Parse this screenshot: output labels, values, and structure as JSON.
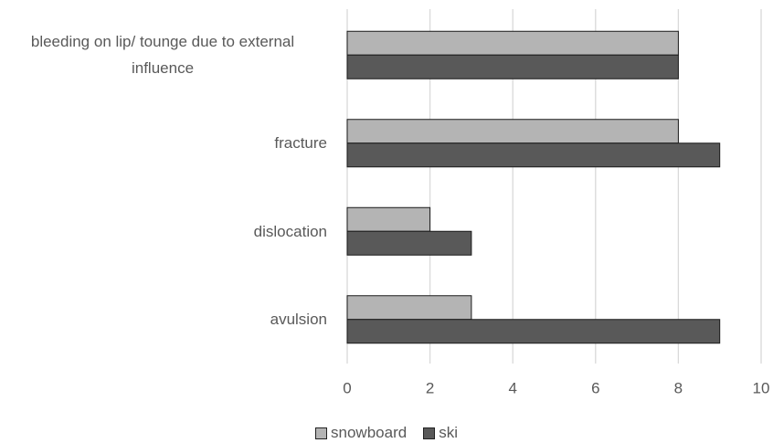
{
  "chart_data": {
    "type": "bar",
    "orientation": "horizontal",
    "categories": [
      "bleeding on lip/ tounge due to external influence",
      "fracture",
      "dislocation",
      "avulsion"
    ],
    "series": [
      {
        "name": "snowboard",
        "color": "#b4b4b4",
        "values": [
          8,
          8,
          2,
          3
        ]
      },
      {
        "name": "ski",
        "color": "#595959",
        "values": [
          8,
          9,
          3,
          9
        ]
      }
    ],
    "xlim": [
      0,
      10
    ],
    "xticks": [
      0,
      2,
      4,
      6,
      8,
      10
    ],
    "grid": true,
    "legend": "bottom"
  }
}
